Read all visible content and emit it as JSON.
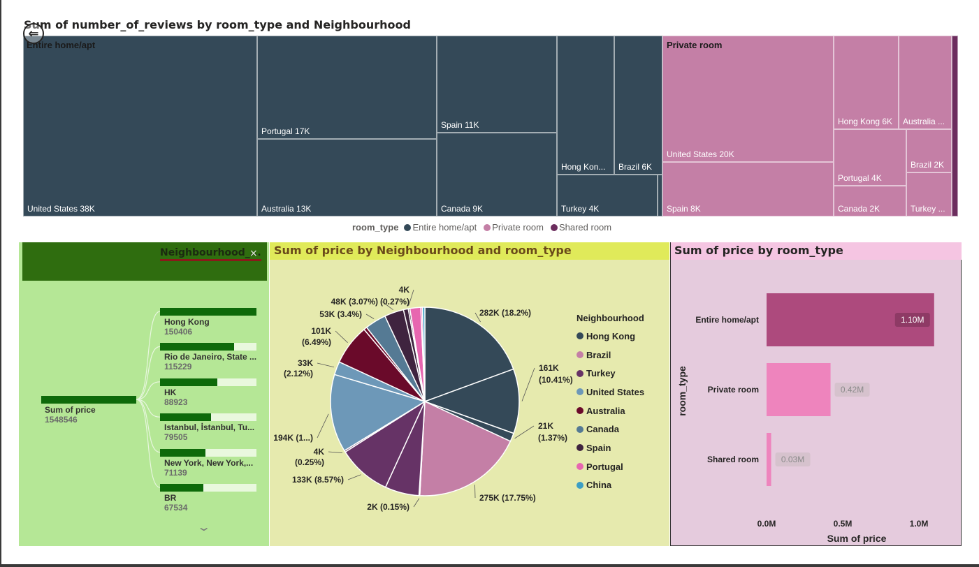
{
  "treemap": {
    "title": "Sum of number_of_reviews by room_type and Neighbourhood",
    "legend_title": "room_type",
    "legend_items": [
      {
        "label": "Entire home/apt",
        "color": "#344958"
      },
      {
        "label": "Private room",
        "color": "#c47fa6"
      },
      {
        "label": "Shared room",
        "color": "#6c2d5e"
      }
    ],
    "groups": [
      {
        "label": "Entire home/apt",
        "color": "#344958"
      },
      {
        "label": "Private room",
        "color": "#c47fa6"
      }
    ],
    "cells": [
      "United States 38K",
      "Portugal 17K",
      "Australia 13K",
      "Spain 11K",
      "Canada 9K",
      "Hong Kon...",
      "Brazil 6K",
      "Turkey 4K",
      "United States 20K",
      "Spain 8K",
      "Hong Kong 6K",
      "Australia ...",
      "Portugal 4K",
      "Brazil 2K",
      "Canada 2K",
      "Turkey ..."
    ]
  },
  "decomp": {
    "chip_label": "Neighbourhood_...",
    "close_icon": "×",
    "chevron_icon": "⌄",
    "root": {
      "label": "Sum of price",
      "value": "1548546"
    },
    "items": [
      {
        "label": "Hong Kong",
        "value": "150406",
        "fill": 1.0
      },
      {
        "label": "Rio de Janeiro, State ...",
        "value": "115229",
        "fill": 0.766
      },
      {
        "label": "HK",
        "value": "88923",
        "fill": 0.591
      },
      {
        "label": "Istanbul, İstanbul, Tu...",
        "value": "79505",
        "fill": 0.529
      },
      {
        "label": "New York, New York,...",
        "value": "71139",
        "fill": 0.473
      },
      {
        "label": "BR",
        "value": "67534",
        "fill": 0.449
      }
    ]
  },
  "pie": {
    "title": "Sum of price by Neighbourhood and room_type",
    "legend_title": "Neighbourhood",
    "legend": [
      {
        "label": "Hong Kong",
        "color": "#344958"
      },
      {
        "label": "Brazil",
        "color": "#c47fa6"
      },
      {
        "label": "Turkey",
        "color": "#663366"
      },
      {
        "label": "United States",
        "color": "#6d98b8"
      },
      {
        "label": "Australia",
        "color": "#6a0a2a"
      },
      {
        "label": "Canada",
        "color": "#557a94"
      },
      {
        "label": "Spain",
        "color": "#3f243f"
      },
      {
        "label": "Portugal",
        "color": "#e766b0"
      },
      {
        "label": "China",
        "color": "#3c9ec4"
      }
    ]
  },
  "bar": {
    "title": "Sum of price by room_type",
    "ylabel": "room_type",
    "xlabel": "Sum of price",
    "ticks": [
      "0.0M",
      "0.5M",
      "1.0M"
    ]
  },
  "chart_data": [
    {
      "type": "treemap",
      "title": "Sum of number_of_reviews by room_type and Neighbourhood",
      "legend_title": "room_type",
      "series": [
        {
          "name": "Entire home/apt",
          "categories": [
            "United States",
            "Portugal",
            "Australia",
            "Spain",
            "Canada",
            "Hong Kong",
            "Brazil",
            "Turkey"
          ],
          "values": [
            38000,
            17000,
            13000,
            11000,
            9000,
            6000,
            6000,
            4000
          ]
        },
        {
          "name": "Private room",
          "categories": [
            "United States",
            "Spain",
            "Hong Kong",
            "Australia",
            "Portugal",
            "Brazil",
            "Canada",
            "Turkey"
          ],
          "values": [
            20000,
            8000,
            6000,
            5000,
            4000,
            2000,
            2000,
            1000
          ]
        },
        {
          "name": "Shared room",
          "categories": [],
          "values": []
        }
      ]
    },
    {
      "type": "pie",
      "title": "Sum of price by Neighbourhood and room_type",
      "legend_title": "Neighbourhood",
      "slices": [
        {
          "value": 282000,
          "label": "282K (18.2%)",
          "color": "#344958"
        },
        {
          "value": 161000,
          "label": "161K (10.41%)",
          "color": "#344958"
        },
        {
          "value": 21000,
          "label": "21K (1.37%)",
          "color": "#344958"
        },
        {
          "value": 275000,
          "label": "275K (17.75%)",
          "color": "#c47fa6"
        },
        {
          "value": 2000,
          "label": "2K (0.15%)",
          "color": "#c47fa6"
        },
        {
          "value": 85000,
          "label": "",
          "color": "#663366"
        },
        {
          "value": 133000,
          "label": "133K (8.57%)",
          "color": "#663366"
        },
        {
          "value": 4000,
          "label": "4K (0.25%)",
          "color": "#663366"
        },
        {
          "value": 194000,
          "label": "194K (1...)",
          "color": "#6d98b8"
        },
        {
          "value": 33000,
          "label": "33K (2.12%)",
          "color": "#6d98b8"
        },
        {
          "value": 101000,
          "label": "101K (6.49%)",
          "color": "#6a0a2a"
        },
        {
          "value": 8000,
          "label": "",
          "color": "#6a0a2a"
        },
        {
          "value": 53000,
          "label": "53K (3.4%)",
          "color": "#557a94"
        },
        {
          "value": 48000,
          "label": "48K (3.07%)",
          "color": "#3f243f"
        },
        {
          "value": 12000,
          "label": "",
          "color": "#3f243f"
        },
        {
          "value": 4000,
          "label": "4K (0.27%)",
          "color": "#3f243f"
        },
        {
          "value": 27000,
          "label": "",
          "color": "#e766b0"
        },
        {
          "value": 4000,
          "label": "",
          "color": "#e766b0"
        },
        {
          "value": 6000,
          "label": "",
          "color": "#3c9ec4"
        }
      ]
    },
    {
      "type": "bar",
      "orientation": "horizontal",
      "title": "Sum of price by room_type",
      "categories": [
        "Entire home/apt",
        "Private room",
        "Shared room"
      ],
      "values": [
        1.1,
        0.42,
        0.03
      ],
      "value_labels": [
        "1.10M",
        "0.42M",
        "0.03M"
      ],
      "colors": [
        "#ad4a7d",
        "#ee84bd",
        "#ee84bd"
      ],
      "xlabel": "Sum of price",
      "ylabel": "room_type",
      "xlim": [
        0,
        1.2
      ]
    }
  ]
}
